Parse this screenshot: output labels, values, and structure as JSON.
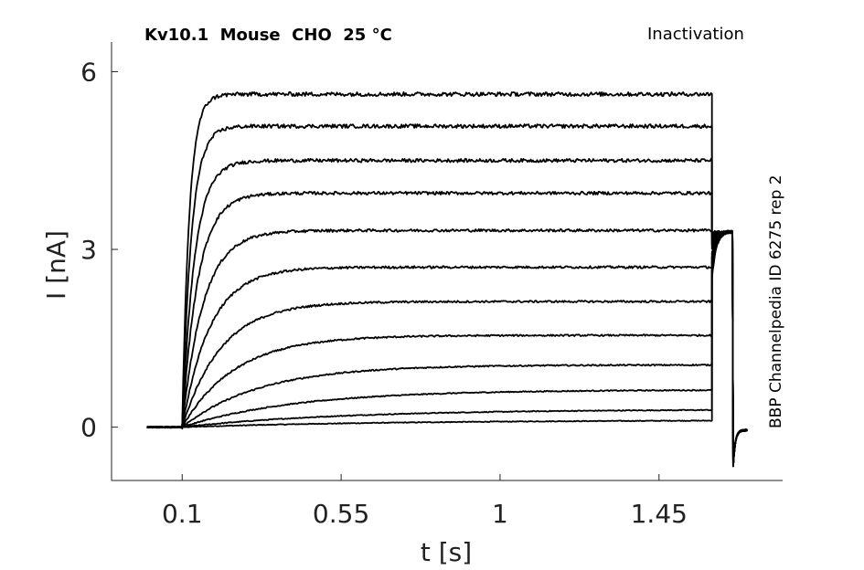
{
  "chart_data": {
    "type": "line",
    "title": "Kv10.1  Mouse  CHO  25 °C",
    "subtitle": "Inactivation",
    "side_label": "BBP Channelpedia ID 6275 rep 2",
    "xlabel": "t [s]",
    "ylabel": "I [nA]",
    "xlim": [
      -0.1,
      1.8
    ],
    "ylim": [
      -0.9,
      6.5
    ],
    "x_ticks": [
      0.1,
      0.55,
      1,
      1.45
    ],
    "x_tick_labels": [
      "0.1",
      "0.55",
      "1",
      "1.45"
    ],
    "y_ticks": [
      0,
      3,
      6
    ],
    "y_tick_labels": [
      "0",
      "3",
      "6"
    ],
    "grid": false,
    "pulse": {
      "baseline_start": 0.0,
      "step_on": 0.1,
      "step_off": 1.6,
      "tail_end": 1.66,
      "end": 1.7
    },
    "tail": {
      "peak": 3.3,
      "undershoot": -0.65,
      "settle": -0.05
    },
    "series": [
      {
        "steady": 0.12,
        "tau": 0.6
      },
      {
        "steady": 0.3,
        "tau": 0.45
      },
      {
        "steady": 0.63,
        "tau": 0.32
      },
      {
        "steady": 1.05,
        "tau": 0.22
      },
      {
        "steady": 1.55,
        "tau": 0.15
      },
      {
        "steady": 2.12,
        "tau": 0.11
      },
      {
        "steady": 2.7,
        "tau": 0.08
      },
      {
        "steady": 3.32,
        "tau": 0.06
      },
      {
        "steady": 3.95,
        "tau": 0.045
      },
      {
        "steady": 4.5,
        "tau": 0.035
      },
      {
        "steady": 5.08,
        "tau": 0.026
      },
      {
        "steady": 5.62,
        "tau": 0.02
      }
    ]
  }
}
